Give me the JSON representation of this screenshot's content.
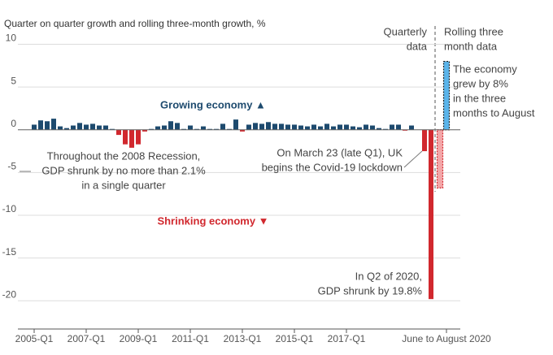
{
  "chart_data": {
    "type": "bar",
    "title": "Quarter on quarter growth and rolling three-month growth, %",
    "categories": [
      "2005-Q1",
      null,
      null,
      null,
      null,
      null,
      null,
      null,
      "2007-Q1",
      null,
      null,
      null,
      null,
      null,
      null,
      null,
      "2009-Q1",
      null,
      null,
      null,
      null,
      null,
      null,
      null,
      "2011-Q1",
      null,
      null,
      null,
      null,
      null,
      null,
      null,
      "2013-Q1",
      null,
      null,
      null,
      null,
      null,
      null,
      null,
      "2015-Q1",
      null,
      null,
      null,
      null,
      null,
      null,
      null,
      "2017-Q1",
      null,
      null,
      null,
      null,
      null,
      null,
      null,
      null,
      null,
      null,
      null,
      null,
      null
    ],
    "values": [
      0.6,
      1.1,
      1.0,
      1.3,
      0.4,
      0.2,
      0.5,
      0.8,
      0.6,
      0.7,
      0.5,
      0.5,
      0.1,
      -0.6,
      -1.7,
      -2.1,
      -1.7,
      -0.2,
      0.1,
      0.4,
      0.5,
      1.0,
      0.8,
      0.1,
      0.5,
      0.1,
      0.4,
      0.1,
      0.1,
      0.7,
      0.1,
      1.2,
      -0.2,
      0.6,
      0.8,
      0.7,
      0.9,
      0.7,
      0.7,
      0.6,
      0.6,
      0.5,
      0.4,
      0.6,
      0.4,
      0.7,
      0.4,
      0.6,
      0.6,
      0.4,
      0.3,
      0.6,
      0.5,
      0.2,
      0.1,
      0.6,
      0.6,
      -0.1,
      0.5,
      0.0,
      -2.5,
      -19.8
    ],
    "positive_color": "#1d4a6e",
    "negative_color": "#d1282e",
    "rolling": {
      "categories": [
        null,
        "June to August 2020"
      ],
      "values": [
        -6.8,
        8.0
      ],
      "colors": [
        "#f4a6a8",
        "#5ab4ea"
      ],
      "edge_colors": [
        "#d1282e",
        "#222222"
      ]
    },
    "ylim": [
      -23.3,
      11
    ],
    "yticks": [
      -20,
      -15,
      -10,
      -5,
      0,
      5,
      10
    ],
    "grid": true,
    "annotations": [
      {
        "lines": [
          "Growing economy ▲"
        ]
      },
      {
        "lines": [
          "Shrinking economy ▼"
        ]
      },
      {
        "lines": [
          "Throughout the 2008 Recession,",
          "GDP shrunk by no more than 2.1%",
          "in a single quarter"
        ]
      },
      {
        "lines": [
          "On March 23 (late Q1), UK",
          "begins the Covid-19 lockdown"
        ]
      },
      {
        "lines": [
          "In Q2 of 2020,",
          "GDP shrunk by 19.8%"
        ]
      },
      {
        "lines": [
          "Quarterly",
          "data"
        ]
      },
      {
        "lines": [
          "Rolling three",
          "month data"
        ]
      },
      {
        "lines": [
          "The economy",
          "grew by 8%",
          "in the three",
          "months to August"
        ]
      }
    ]
  }
}
